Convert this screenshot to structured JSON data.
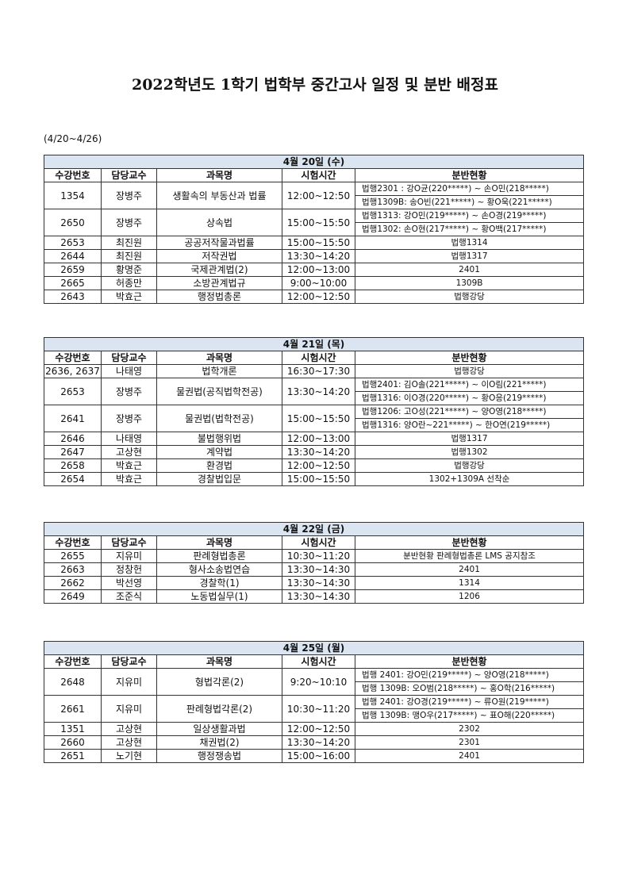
{
  "title": "2022학년도 1학기 법학부 중간고사 일정 및 분반 배정표",
  "date_range": "(4/20~4/26)",
  "tables": [
    {
      "date": "4월 20일 (수)",
      "headers": [
        "수강번호",
        "담당교수",
        "과목명",
        "시험시간",
        "분반현황"
      ],
      "rows": [
        [
          "1354",
          "장병주",
          "생활속의 부동산과 법률",
          "12:00~12:50",
          [
            "법행2301 : 강O균(220*****) ~ 손O민(218*****)",
            "법행1309B: 송O빈(221*****) ~ 황O욱(221*****)"
          ]
        ],
        [
          "2650",
          "장병주",
          "상속법",
          "15:00~15:50",
          [
            "법행1313:  강O민(219*****) ~ 손O경(219*****)",
            "법행1302:  손O현(217*****) ~ 황O백(217*****)"
          ]
        ],
        [
          "2653",
          "최진원",
          "공공저작물과법률",
          "15:00~15:50",
          [
            "법행1314"
          ]
        ],
        [
          "2644",
          "최진원",
          "저작권법",
          "13:30~14:20",
          [
            "법행1317"
          ]
        ],
        [
          "2659",
          "황명준",
          "국제관계법(2)",
          "12:00~13:00",
          [
            "2401"
          ]
        ],
        [
          "2665",
          "허종만",
          "소방관계법규",
          "9:00~10:00",
          [
            "1309B"
          ]
        ],
        [
          "2643",
          "박효근",
          "행정법총론",
          "12:00~12:50",
          [
            "법행강당"
          ]
        ]
      ]
    },
    {
      "date": "4월 21일 (목)",
      "headers": [
        "수강번호",
        "담당교수",
        "과목명",
        "시험시간",
        "분반현황"
      ],
      "rows": [
        [
          "2636, 2637",
          "나태영",
          "법학개론",
          "16:30~17:30",
          [
            "법행강당"
          ]
        ],
        [
          "2653",
          "장병주",
          "물권법(공직법학전공)",
          "13:30~14:20",
          [
            "법행2401: 김O솔(221*****) ~ 이O림(221*****)",
            "법행1316: 이O경(220*****) ~ 황O응(219*****)"
          ]
        ],
        [
          "2641",
          "장병주",
          "물권법(법학전공)",
          "15:00~15:50",
          [
            "법행1206: 고O성(221*****) ~ 양O영(218*****)",
            "법행1316: 양O란~221*****) ~ 한O연(219*****)"
          ]
        ],
        [
          "2646",
          "나태영",
          "불법행위법",
          "12:00~13:00",
          [
            "법행1317"
          ]
        ],
        [
          "2647",
          "고상현",
          "계약법",
          "13:30~14:20",
          [
            "법행1302"
          ]
        ],
        [
          "2658",
          "박효근",
          "환경법",
          "12:00~12:50",
          [
            "법행강당"
          ]
        ],
        [
          "2654",
          "박효근",
          "경찰법입문",
          "15:00~15:50",
          [
            "1302+1309A 선착순"
          ]
        ]
      ]
    },
    {
      "date": "4월 22일 (금)",
      "headers": [
        "수강번호",
        "담당교수",
        "과목명",
        "시험시간",
        "분반현황"
      ],
      "rows": [
        [
          "2655",
          "지유미",
          "판례형법총론",
          "10:30~11:20",
          [
            "분반현황 판례형법총론 LMS 공지참조"
          ]
        ],
        [
          "2663",
          "정창헌",
          "형사소송법연습",
          "13:30~14:30",
          [
            "2401"
          ]
        ],
        [
          "2662",
          "박선영",
          "경찰학(1)",
          "13:30~14:30",
          [
            "1314"
          ]
        ],
        [
          "2649",
          "조준식",
          "노동법실무(1)",
          "13:30~14:30",
          [
            "1206"
          ]
        ]
      ]
    },
    {
      "date": "4월 25일 (월)",
      "headers": [
        "수강번호",
        "담당교수",
        "과목명",
        "시험시간",
        "분반현황"
      ],
      "rows": [
        [
          "2648",
          "지유미",
          "형법각론(2)",
          "9:20~10:10",
          [
            "법행 2401: 강O민(219*****) ~ 양O영(218*****)",
            "법행 1309B: 오O범(218*****) ~ 홍O학(216*****)"
          ]
        ],
        [
          "2661",
          "지유미",
          "판례형법각론(2)",
          "10:30~11:20",
          [
            "법행 2401: 강O경(219*****) ~ 류O원(219*****)",
            "법행 1309B: 맹O우(217*****) ~ 표O해(220*****)"
          ]
        ],
        [
          "1351",
          "고상현",
          "일상생활과법",
          "12:00~12:50",
          [
            "2302"
          ]
        ],
        [
          "2660",
          "고상현",
          "채권법(2)",
          "13:30~14:20",
          [
            "2301"
          ]
        ],
        [
          "2651",
          "노기현",
          "행정쟁송법",
          "15:00~16:00",
          [
            "2401"
          ]
        ]
      ]
    }
  ]
}
